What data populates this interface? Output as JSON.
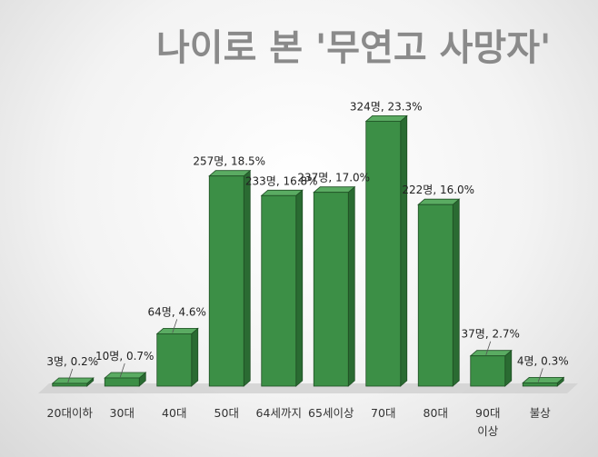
{
  "chart_data": {
    "type": "bar",
    "title": "나이로 본 '무연고 사망자'",
    "categories": [
      [
        "20대이하"
      ],
      [
        "30대"
      ],
      [
        "40대"
      ],
      [
        "50대"
      ],
      [
        "64세까지"
      ],
      [
        "65세이상"
      ],
      [
        "70대"
      ],
      [
        "80대"
      ],
      [
        "90대",
        "이상"
      ],
      [
        "불상"
      ]
    ],
    "values": [
      3,
      10,
      64,
      257,
      233,
      237,
      324,
      222,
      37,
      4
    ],
    "data_labels": [
      "3명, 0.2%",
      "10명, 0.7%",
      "64명, 4.6%",
      "257명, 18.5%",
      "233명, 16.8%",
      "237명, 17.0%",
      "324명, 23.3%",
      "222명, 16.0%",
      "37명, 2.7%",
      "4명, 0.3%"
    ],
    "ylim": [
      0,
      330
    ],
    "grid": false,
    "legend": "none",
    "colors": {
      "bar": "#3c8f46",
      "bar_top": "#5aab62",
      "bar_side": "#2a6b32",
      "edge": "#1f4f24"
    }
  }
}
